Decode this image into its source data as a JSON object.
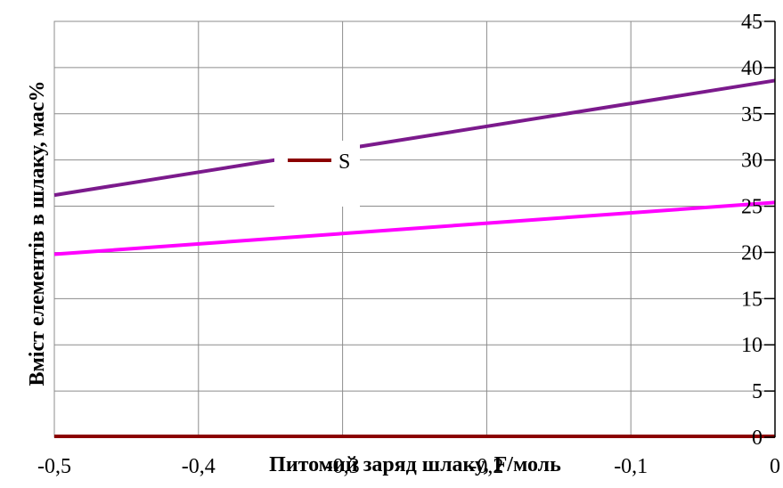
{
  "chart_data": {
    "type": "line",
    "xlabel": "Питомий заряд шлаку, F/моль",
    "ylabel": "Вміст елементів в шлаку, мас%",
    "xlim": [
      -0.5,
      0
    ],
    "ylim": [
      0,
      45
    ],
    "x_ticks": [
      "-0,5",
      "-0,4",
      "-0,3",
      "-0,2",
      "-0,1",
      "0"
    ],
    "x_tick_values": [
      -0.5,
      -0.4,
      -0.3,
      -0.2,
      -0.1,
      0
    ],
    "y_ticks": [
      "45",
      "40",
      "35",
      "30",
      "25",
      "20",
      "15",
      "10",
      "5",
      "0"
    ],
    "y_tick_values": [
      45,
      40,
      35,
      30,
      25,
      20,
      15,
      10,
      5,
      0
    ],
    "y_axis_position": "right",
    "grid": true,
    "legend_position": "center-top",
    "legend": [
      {
        "name": "S",
        "color": "#8b0000"
      }
    ],
    "series": [
      {
        "color": "#7b1a8c",
        "x": [
          -0.5,
          0
        ],
        "values": [
          26.2,
          38.6
        ]
      },
      {
        "color": "#ff00ff",
        "x": [
          -0.5,
          0
        ],
        "values": [
          19.8,
          25.4
        ]
      },
      {
        "name": "S",
        "color": "#8b0000",
        "x": [
          -0.5,
          0
        ],
        "values": [
          0.1,
          0.1
        ]
      }
    ]
  }
}
